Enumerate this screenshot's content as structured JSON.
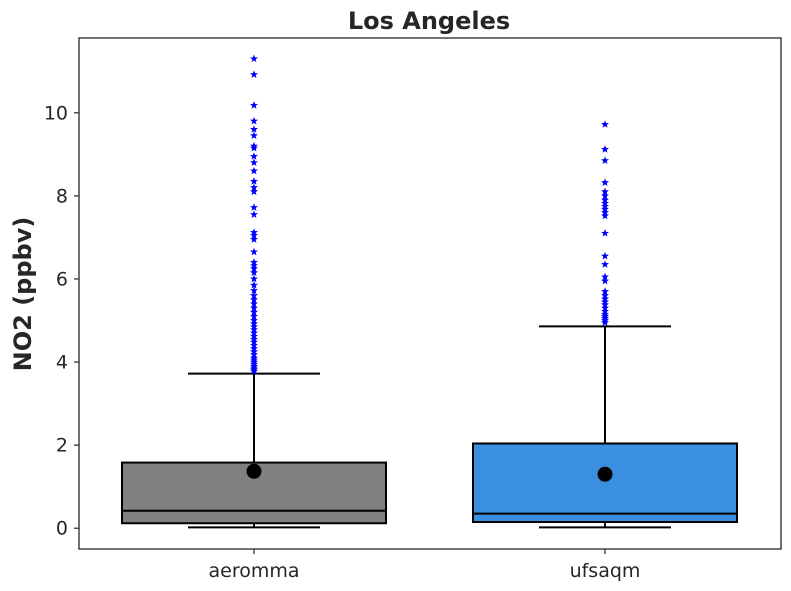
{
  "chart_data": {
    "type": "box",
    "title": "Los Angeles",
    "xlabel": "",
    "ylabel": "NO2 (ppbv)",
    "ylim": [
      -0.5,
      11.8
    ],
    "yticks": [
      0,
      2,
      4,
      6,
      8,
      10
    ],
    "grid": false,
    "categories": [
      "aeromma",
      "ufsaqm"
    ],
    "boxes": [
      {
        "category": "aeromma",
        "color": "#808080",
        "whisker_low": 0.02,
        "q1": 0.12,
        "median": 0.42,
        "q3": 1.58,
        "whisker_high": 3.72,
        "mean": 1.37,
        "outliers": [
          3.78,
          3.82,
          3.86,
          3.9,
          3.95,
          4.0,
          4.05,
          4.1,
          4.18,
          4.25,
          4.32,
          4.4,
          4.48,
          4.55,
          4.62,
          4.7,
          4.78,
          4.85,
          4.92,
          5.0,
          5.1,
          5.2,
          5.3,
          5.4,
          5.5,
          5.6,
          5.72,
          5.85,
          6.0,
          6.15,
          6.25,
          6.32,
          6.4,
          6.65,
          6.95,
          7.05,
          7.12,
          7.55,
          7.72,
          8.1,
          8.2,
          8.35,
          8.6,
          8.8,
          8.95,
          9.15,
          9.2,
          9.45,
          9.6,
          9.8,
          10.18,
          10.92,
          11.3
        ]
      },
      {
        "category": "ufsaqm",
        "color": "#3a8fe0",
        "whisker_low": 0.02,
        "q1": 0.15,
        "median": 0.35,
        "q3": 2.04,
        "whisker_high": 4.86,
        "mean": 1.3,
        "outliers": [
          4.95,
          5.0,
          5.05,
          5.1,
          5.15,
          5.22,
          5.3,
          5.38,
          5.45,
          5.52,
          5.6,
          5.7,
          5.95,
          6.05,
          6.35,
          6.55,
          7.1,
          7.52,
          7.6,
          7.68,
          7.75,
          7.82,
          7.9,
          8.0,
          8.1,
          8.32,
          8.85,
          9.12,
          9.72
        ]
      }
    ]
  }
}
